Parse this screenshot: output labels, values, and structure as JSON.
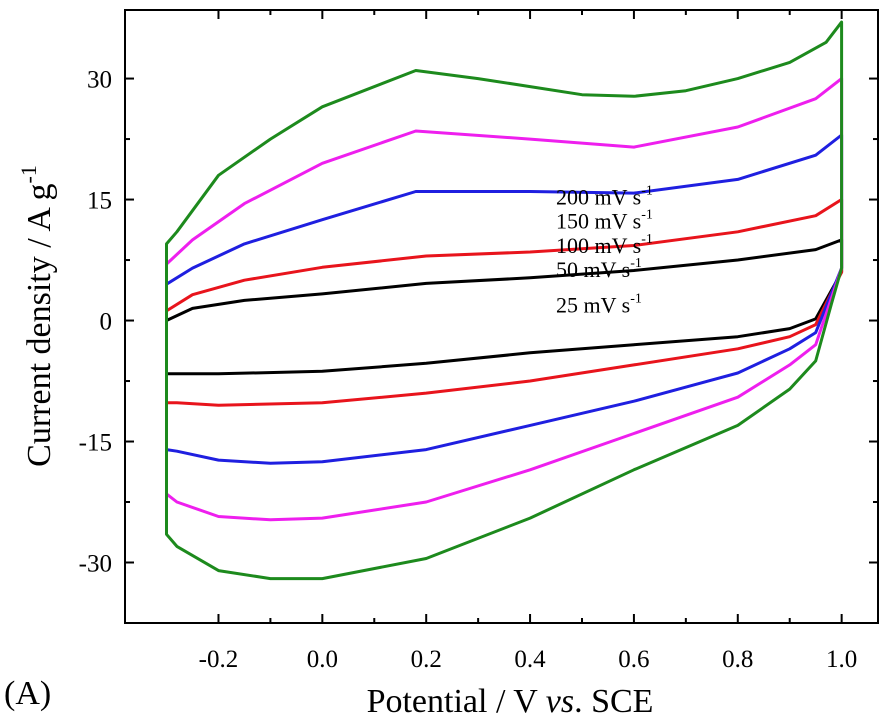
{
  "panel_label": "(A)",
  "chart_data": {
    "type": "line",
    "xlabel": {
      "pre": "Potential / V ",
      "italic": "vs",
      "post": ". SCE"
    },
    "ylabel": {
      "main": "Current density / A g",
      "sup": "-1"
    },
    "xlim": [
      -0.38,
      1.07
    ],
    "ylim": [
      -37.5,
      38.5
    ],
    "x_ticks": [
      "-0.2",
      "0.0",
      "0.2",
      "0.4",
      "0.6",
      "0.8",
      "1.0"
    ],
    "y_ticks": [
      "-30",
      "-15",
      "0",
      "15",
      "30"
    ],
    "grid": false,
    "legend": "inline annotations",
    "annotations": [
      {
        "text": "25 mV s",
        "sup": "-1",
        "x": 0.45,
        "y": 1.0
      },
      {
        "text": "50 mV s",
        "sup": "-1",
        "x": 0.45,
        "y": 5.4
      },
      {
        "text": "100 mV s",
        "sup": "-1",
        "x": 0.45,
        "y": 8.4
      },
      {
        "text": "150 mV s",
        "sup": "-1",
        "x": 0.45,
        "y": 11.4
      },
      {
        "text": "200 mV s",
        "sup": "-1",
        "x": 0.45,
        "y": 14.4
      }
    ],
    "series": [
      {
        "name": "25 mV s-1",
        "color": "#000000",
        "x": [
          -0.3,
          -0.3,
          -0.25,
          -0.15,
          0.0,
          0.2,
          0.4,
          0.6,
          0.8,
          0.95,
          1.0,
          1.0,
          0.95,
          0.9,
          0.8,
          0.6,
          0.4,
          0.2,
          0.0,
          -0.2,
          -0.28,
          -0.3,
          -0.3
        ],
        "y": [
          -1.5,
          0.0,
          1.5,
          2.5,
          3.3,
          4.6,
          5.3,
          6.2,
          7.5,
          8.8,
          10.0,
          6.0,
          0.2,
          -1.0,
          -2.0,
          -3.0,
          -4.0,
          -5.3,
          -6.3,
          -6.6,
          -6.6,
          -6.6,
          -1.5
        ]
      },
      {
        "name": "50 mV s-1",
        "color": "#e8141c",
        "x": [
          -0.3,
          -0.3,
          -0.25,
          -0.15,
          0.0,
          0.2,
          0.4,
          0.6,
          0.8,
          0.95,
          1.0,
          1.0,
          0.95,
          0.9,
          0.8,
          0.6,
          0.4,
          0.2,
          0.0,
          -0.2,
          -0.28,
          -0.3,
          -0.3
        ],
        "y": [
          -2.5,
          1.2,
          3.2,
          5.0,
          6.6,
          8.0,
          8.5,
          9.3,
          11.0,
          13.0,
          15.0,
          6.0,
          -0.5,
          -2.0,
          -3.5,
          -5.5,
          -7.5,
          -9.0,
          -10.2,
          -10.5,
          -10.2,
          -10.2,
          -2.5
        ]
      },
      {
        "name": "100 mV s-1",
        "color": "#1f1fe0",
        "x": [
          -0.3,
          -0.3,
          -0.25,
          -0.15,
          0.0,
          0.18,
          0.4,
          0.6,
          0.8,
          0.95,
          1.0,
          1.0,
          0.95,
          0.9,
          0.8,
          0.6,
          0.4,
          0.2,
          0.0,
          -0.1,
          -0.2,
          -0.28,
          -0.3,
          -0.3
        ],
        "y": [
          -3.0,
          4.5,
          6.5,
          9.5,
          12.5,
          16.0,
          16.0,
          15.8,
          17.5,
          20.5,
          23.0,
          6.5,
          -1.5,
          -3.5,
          -6.5,
          -10.0,
          -13.0,
          -16.0,
          -17.5,
          -17.7,
          -17.3,
          -16.2,
          -16.0,
          -3.0
        ]
      },
      {
        "name": "150 mV s-1",
        "color": "#ee1fee",
        "x": [
          -0.3,
          -0.3,
          -0.25,
          -0.15,
          0.0,
          0.18,
          0.4,
          0.6,
          0.8,
          0.95,
          1.0,
          1.0,
          0.95,
          0.9,
          0.8,
          0.6,
          0.4,
          0.2,
          0.0,
          -0.1,
          -0.2,
          -0.28,
          -0.3,
          -0.3
        ],
        "y": [
          -3.0,
          7.0,
          10.0,
          14.5,
          19.5,
          23.5,
          22.5,
          21.5,
          24.0,
          27.5,
          30.0,
          6.5,
          -3.0,
          -5.5,
          -9.5,
          -14.0,
          -18.5,
          -22.5,
          -24.5,
          -24.7,
          -24.3,
          -22.5,
          -21.5,
          -3.0
        ]
      },
      {
        "name": "200 mV s-1",
        "color": "#1d8a1d",
        "x": [
          -0.3,
          -0.3,
          -0.28,
          -0.2,
          -0.1,
          0.0,
          0.18,
          0.3,
          0.4,
          0.5,
          0.6,
          0.7,
          0.8,
          0.9,
          0.97,
          1.0,
          1.0,
          0.98,
          0.95,
          0.9,
          0.8,
          0.6,
          0.4,
          0.2,
          0.0,
          -0.1,
          -0.2,
          -0.28,
          -0.3,
          -0.3
        ],
        "y": [
          -3.0,
          9.5,
          11.0,
          18.0,
          22.5,
          26.5,
          31.0,
          30.0,
          29.0,
          28.0,
          27.8,
          28.5,
          30.0,
          32.0,
          34.5,
          37.0,
          6.5,
          2.0,
          -5.0,
          -8.5,
          -13.0,
          -18.5,
          -24.5,
          -29.5,
          -32.0,
          -32.0,
          -31.0,
          -28.0,
          -26.5,
          -3.0
        ]
      }
    ]
  }
}
